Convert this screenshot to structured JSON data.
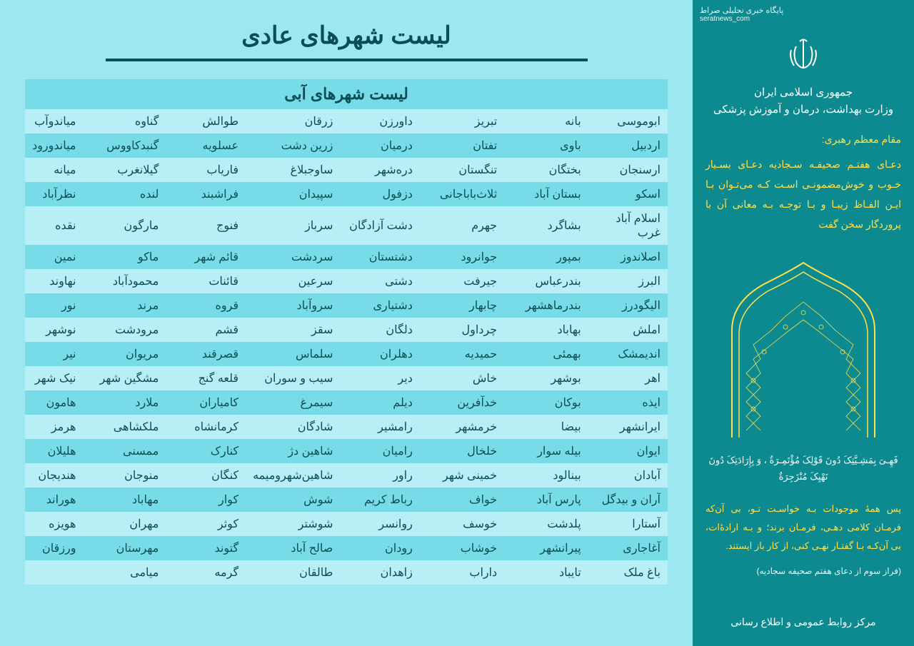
{
  "watermark": {
    "line1": "پایگاه خبری تحلیلی صراط",
    "line2": "seratnews_com"
  },
  "sidebar": {
    "gov_title": "جمهوری اسلامی ایران",
    "ministry": "وزارت بهداشت، درمان و آموزش پزشکی",
    "leader_label": "مقام معظم رهبری:",
    "quote1": "دعـای هفتـم صحیفـه سـجادیه دعـای بسـیار خـوب و خوش‌مضمونـی اسـت کـه می‌تـوان بـا ایـن الفـاظ زیبـا و بـا توجـه بـه معانی آن با پروردگار سخن گفت",
    "arabic": "فَهِـیَ بِمَشِـیَّتِکَ دُونَ قَوْلِکَ مُؤْتَمِـرَةٌ ، وَ بِإِرَادَتِکَ دُونَ نَهْیِکَ مُنْزَجِرَةٌ",
    "quote2": "پس همۀ موجودات بـه خواسـت تـو، بی آن‌که فرمـان کلامی دهـی، فرمـان برند؛ و بـه ارادۀ‌ات، بی آن‌کـه بـا گفتـار نهـی کنی، از کار باز ایستند.",
    "source": "(فراز سوم از دعای هفتم صحیفه سجادیه)",
    "footer": "مرکز روابط عمومی و اطلاع رسانی"
  },
  "main": {
    "page_title": "لیست شهرهای عادی",
    "table_title": "لیست شهرهای آبی",
    "rows": [
      [
        "ابوموسی",
        "بانه",
        "تبریز",
        "داورزن",
        "زرقان",
        "طوالش",
        "گناوه",
        "میاندوآب"
      ],
      [
        "اردبیل",
        "باوی",
        "تفتان",
        "درمیان",
        "زرین دشت",
        "عسلویه",
        "گنبدکاووس",
        "میاندورود"
      ],
      [
        "ارسنجان",
        "بختگان",
        "تنگستان",
        "دره‌شهر",
        "ساوجبلاغ",
        "فاریاب",
        "گیلانغرب",
        "میانه"
      ],
      [
        "اسکو",
        "بستان آباد",
        "ثلاث‌باباجانی",
        "دزفول",
        "سپیدان",
        "فراشبند",
        "لنده",
        "نظرآباد"
      ],
      [
        "اسلام آباد غرب",
        "بشاگرد",
        "جهرم",
        "دشت آزادگان",
        "سرباز",
        "فنوج",
        "مارگون",
        "نقده"
      ],
      [
        "اصلاندوز",
        "بمپور",
        "جوانرود",
        "دشتستان",
        "سردشت",
        "قائم شهر",
        "ماکو",
        "نمین"
      ],
      [
        "البرز",
        "بندرعباس",
        "جیرفت",
        "دشتی",
        "سرعین",
        "قائنات",
        "محمودآباد",
        "نهاوند"
      ],
      [
        "الیگودرز",
        "بندرماهشهر",
        "چابهار",
        "دشتیاری",
        "سروآباد",
        "قروه",
        "مرند",
        "نور"
      ],
      [
        "املش",
        "بهاباد",
        "چرداول",
        "دلگان",
        "سقز",
        "قشم",
        "مرودشت",
        "نوشهر"
      ],
      [
        "اندیمشک",
        "بهمئی",
        "حمیدیه",
        "دهلران",
        "سلماس",
        "قصرقند",
        "مریوان",
        "نیر"
      ],
      [
        "اهر",
        "بوشهر",
        "خاش",
        "دیر",
        "سیب و سوران",
        "قلعه گنج",
        "مشگین شهر",
        "نیک شهر"
      ],
      [
        "ایذه",
        "بوکان",
        "خدآفرین",
        "دیلم",
        "سیمرغ",
        "کامیاران",
        "ملارد",
        "هامون"
      ],
      [
        "ایرانشهر",
        "بیضا",
        "خرمشهر",
        "رامشیر",
        "شادگان",
        "کرمانشاه",
        "ملکشاهی",
        "هرمز"
      ],
      [
        "ایوان",
        "بیله سوار",
        "خلخال",
        "رامیان",
        "شاهین دژ",
        "کنارک",
        "ممسنی",
        "هلیلان"
      ],
      [
        "آبادان",
        "بینالود",
        "خمینی شهر",
        "راور",
        "شاهین‌شهرومیمه",
        "کنگان",
        "منوجان",
        "هندیجان"
      ],
      [
        "آران و بیدگل",
        "پارس آباد",
        "خواف",
        "رباط کریم",
        "شوش",
        "کوار",
        "مهاباد",
        "هوراند"
      ],
      [
        "آستارا",
        "پلدشت",
        "خوسف",
        "روانسر",
        "شوشتر",
        "کوثر",
        "مهران",
        "هویزه"
      ],
      [
        "آغاجاری",
        "پیرانشهر",
        "خوشاب",
        "رودان",
        "صالح آباد",
        "گتوند",
        "مهرستان",
        "ورزقان"
      ],
      [
        "باغ ملک",
        "تایباد",
        "داراب",
        "زاهدان",
        "طالقان",
        "گرمه",
        "میامی",
        ""
      ]
    ]
  },
  "colors": {
    "sidebar_bg": "#0d8a8f",
    "main_bg": "#9de8f0",
    "row_odd": "#b8eef5",
    "row_even": "#78dce8",
    "title_color": "#0a4d55",
    "accent": "#ffe04a"
  }
}
